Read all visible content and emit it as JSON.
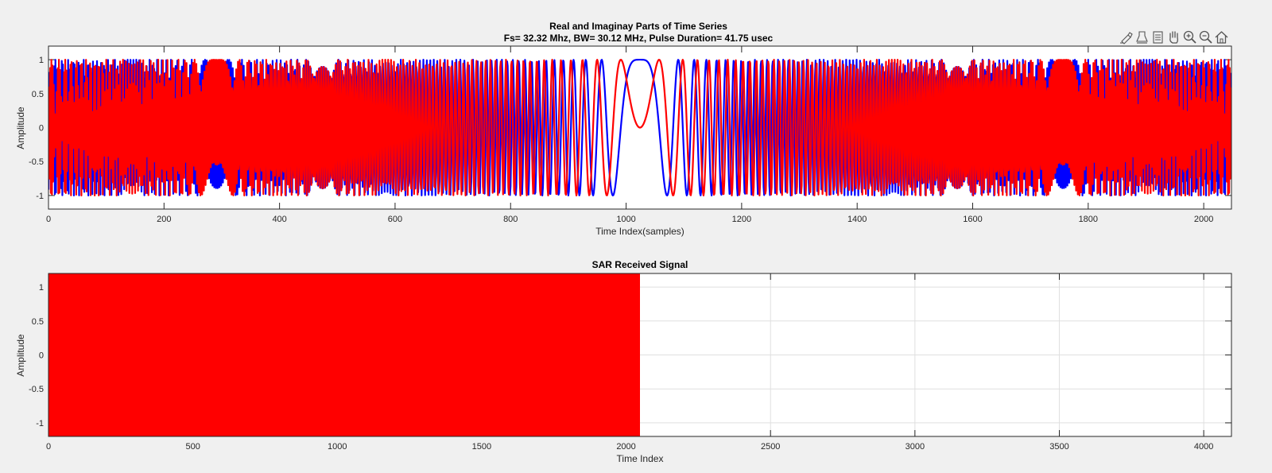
{
  "toolbar": {
    "icons": [
      "brush-icon",
      "data-tips-icon",
      "export-icon",
      "pan-hand-icon",
      "zoom-in-icon",
      "zoom-out-icon",
      "home-icon"
    ]
  },
  "colors": {
    "real": "#0000ff",
    "imag": "#ff0000",
    "received": "#ff0000",
    "axes_bg": "#ffffff",
    "figure_bg": "#f0f0f0",
    "grid": "#dfdfdf"
  },
  "chart_data": [
    {
      "type": "line",
      "title": "Real and Imaginay Parts of Time Series",
      "subtitle": "Fs= 32.32 Mhz, BW= 30.12 MHz, Pulse Duration= 41.75 usec",
      "xlabel": "Time Index(samples)",
      "ylabel": "Amplitude",
      "xlim": [
        0,
        2048
      ],
      "ylim": [
        -1.2,
        1.2
      ],
      "xticks": [
        0,
        200,
        400,
        600,
        800,
        1000,
        1200,
        1400,
        1600,
        1800,
        2000
      ],
      "yticks": [
        -1,
        -0.5,
        0,
        0.5,
        1
      ],
      "grid": false,
      "series": [
        {
          "color": "#0000ff",
          "formula": "cos(pi * 0.9319 / 2048 * (n - 1024)^2)",
          "n_range": [
            0,
            2047
          ]
        },
        {
          "color": "#ff0000",
          "formula": "sin(pi * 0.9319 / 2048 * (n - 1024)^2)",
          "n_range": [
            0,
            2047
          ]
        }
      ]
    },
    {
      "type": "line",
      "title": "SAR Received Signal",
      "xlabel": "Time Index",
      "ylabel": "Amplitude",
      "xlim": [
        0,
        4096
      ],
      "ylim": [
        -1.2,
        1.2
      ],
      "xticks": [
        0,
        500,
        1000,
        1500,
        2000,
        2500,
        3000,
        3500,
        4000
      ],
      "yticks": [
        -1,
        -0.5,
        0,
        0.5,
        1
      ],
      "grid": true,
      "series": [
        {
          "color": "#ff0000",
          "description": "dense oscillation filling full amplitude range",
          "x_range": [
            0,
            2048
          ],
          "y_range": [
            -1.2,
            1.2
          ]
        }
      ]
    }
  ]
}
